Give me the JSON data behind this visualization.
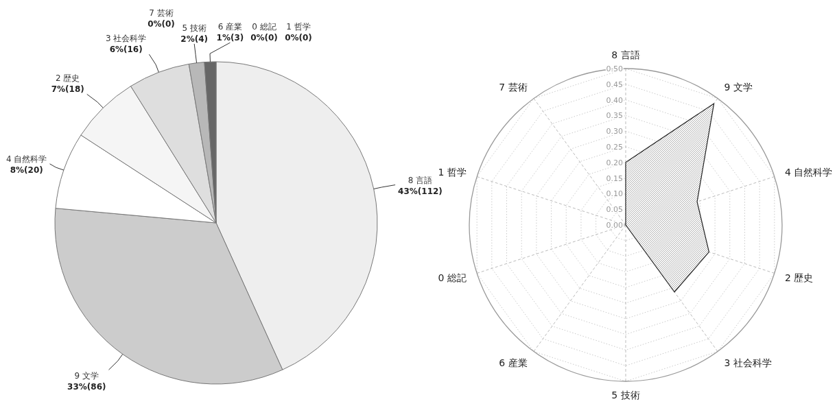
{
  "chart_data": [
    {
      "type": "pie",
      "categories": [
        "8 言語",
        "9 文学",
        "4 自然科学",
        "2 歴史",
        "3 社会科学",
        "5 技術",
        "6 産業",
        "0 総記",
        "1 哲学",
        "7 芸術"
      ],
      "values": [
        112,
        86,
        20,
        18,
        16,
        4,
        3,
        0,
        0,
        0
      ],
      "value_labels": [
        "43%(112)",
        "33%(86)",
        "8%(20)",
        "7%(18)",
        "6%(16)",
        "2%(4)",
        "1%(3)",
        "0%(0)",
        "0%(0)",
        "0%(0)"
      ],
      "colors": [
        "#eeeeee",
        "#cccccc",
        "#ffffff",
        "#f5f5f5",
        "#dedede",
        "#b8b8b8",
        "#666666",
        "#999999",
        "#999999",
        "#999999"
      ]
    },
    {
      "type": "radar",
      "categories": [
        "8 言語",
        "9 文学",
        "4 自然科学",
        "2 歴史",
        "3 社会科学",
        "5 技術",
        "6 産業",
        "0 総記",
        "1 哲学",
        "7 芸術"
      ],
      "series": [
        {
          "color": "#222222",
          "values": [
            0.2,
            0.48,
            0.24,
            0.28,
            0.265,
            0,
            0,
            0,
            0,
            0
          ]
        }
      ],
      "ylim": [
        0,
        0.5
      ],
      "yticks": [
        {
          "value": 0,
          "label": "0.00"
        },
        {
          "value": 0.05,
          "label": "0.05"
        },
        {
          "value": 0.1,
          "label": "0.10"
        },
        {
          "value": 0.15,
          "label": "0.15"
        },
        {
          "value": 0.2,
          "label": "0.20"
        },
        {
          "value": 0.25,
          "label": "0.25"
        },
        {
          "value": 0.3,
          "label": "0.30"
        },
        {
          "value": 0.35,
          "label": "0.35"
        },
        {
          "value": 0.4,
          "label": "0.40"
        },
        {
          "value": 0.45,
          "label": "0.45"
        },
        {
          "value": 0.5,
          "label": "0.50"
        }
      ],
      "grid": true
    }
  ]
}
